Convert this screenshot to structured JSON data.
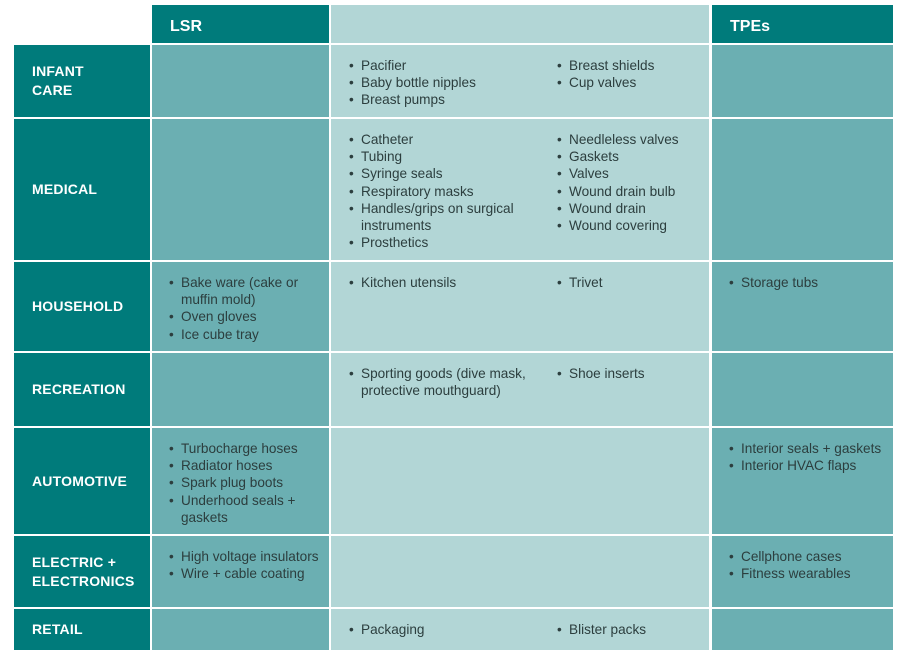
{
  "headers": {
    "lsr": "LSR",
    "middle": "",
    "tpes": "TPEs"
  },
  "rows": [
    {
      "label": [
        "INFANT",
        "CARE"
      ],
      "lsr": [],
      "both_left": [
        "Pacifier",
        "Baby bottle nipples",
        "Breast pumps"
      ],
      "both_right": [
        "Breast shields",
        "Cup valves"
      ],
      "tpe": []
    },
    {
      "label": [
        "MEDICAL"
      ],
      "lsr": [],
      "both_left": [
        "Catheter",
        "Tubing",
        "Syringe seals",
        "Respiratory masks",
        "Handles/grips on surgical instruments",
        "Prosthetics"
      ],
      "both_right": [
        "Needleless valves",
        "Gaskets",
        "Valves",
        "Wound drain bulb",
        "Wound drain",
        "Wound covering"
      ],
      "tpe": []
    },
    {
      "label": [
        "HOUSEHOLD"
      ],
      "lsr": [
        "Bake ware (cake or muffin mold)",
        "Oven gloves",
        "Ice cube tray"
      ],
      "both_left": [
        "Kitchen utensils"
      ],
      "both_right": [
        "Trivet"
      ],
      "tpe": [
        "Storage tubs"
      ]
    },
    {
      "label": [
        "RECREATION"
      ],
      "lsr": [],
      "both_left": [
        "Sporting goods (dive mask, protective mouthguard)"
      ],
      "both_right": [
        "Shoe inserts"
      ],
      "tpe": []
    },
    {
      "label": [
        "AUTOMOTIVE"
      ],
      "lsr": [
        "Turbocharge hoses",
        "Radiator hoses",
        "Spark plug boots",
        "Underhood seals + gaskets"
      ],
      "both_left": [],
      "both_right": [],
      "tpe": [
        "Interior seals + gaskets",
        "Interior HVAC flaps"
      ]
    },
    {
      "label": [
        "ELECTRIC +",
        "ELECTRONICS"
      ],
      "lsr": [
        "High voltage insulators",
        "Wire + cable coating"
      ],
      "both_left": [],
      "both_right": [],
      "tpe": [
        "Cellphone cases",
        "Fitness wearables"
      ]
    },
    {
      "label": [
        "RETAIL"
      ],
      "lsr": [],
      "both_left": [
        "Packaging"
      ],
      "both_right": [
        "Blister packs"
      ],
      "tpe": []
    }
  ]
}
